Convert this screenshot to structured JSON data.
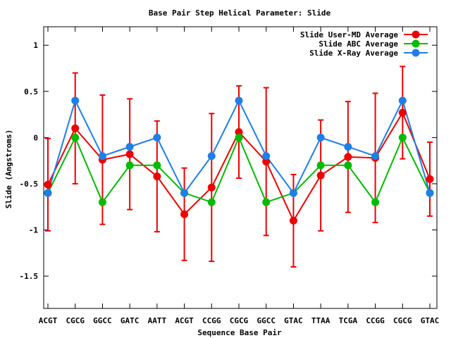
{
  "chart_data": {
    "type": "line",
    "title": "Base Pair Step Helical Parameter: Slide",
    "xlabel": "Sequence Base Pair",
    "ylabel": "Slide (Angstroms)",
    "ylim": [
      -1.85,
      1.2
    ],
    "yticks": [
      1,
      0.5,
      0,
      -0.5,
      -1,
      -1.5
    ],
    "ytick_labels": [
      "1",
      "0.5",
      "0",
      "-0.5",
      "-1",
      "-1.5"
    ],
    "categories": [
      "ACGT",
      "CGCG",
      "GGCC",
      "GATC",
      "AATT",
      "ACGT",
      "CCGG",
      "CGCG",
      "GGCC",
      "GTAC",
      "TTAA",
      "TCGA",
      "CCGG",
      "CGCG",
      "GTAC"
    ],
    "legend_position": "top-right",
    "series": [
      {
        "name": "Slide User-MD Average",
        "color": "#ee0000",
        "values": [
          -0.51,
          0.1,
          -0.24,
          -0.18,
          -0.42,
          -0.83,
          -0.54,
          0.06,
          -0.26,
          -0.9,
          -0.41,
          -0.21,
          -0.22,
          0.27,
          -0.45
        ],
        "error": [
          0.5,
          0.6,
          0.7,
          0.6,
          0.6,
          0.5,
          0.8,
          0.5,
          0.8,
          0.5,
          0.6,
          0.6,
          0.7,
          0.5,
          0.4
        ]
      },
      {
        "name": "Slide ABC Average",
        "color": "#00bb00",
        "values": [
          -0.6,
          0.0,
          -0.7,
          -0.3,
          -0.3,
          -0.6,
          -0.7,
          0.0,
          -0.7,
          -0.6,
          -0.3,
          -0.3,
          -0.7,
          0.0,
          -0.6
        ]
      },
      {
        "name": "Slide X-Ray Average",
        "color": "#1e7fe6",
        "values": [
          -0.6,
          0.4,
          -0.2,
          -0.1,
          0.0,
          -0.6,
          -0.2,
          0.4,
          -0.2,
          -0.6,
          0.0,
          -0.1,
          -0.2,
          0.4,
          -0.6
        ]
      }
    ]
  }
}
